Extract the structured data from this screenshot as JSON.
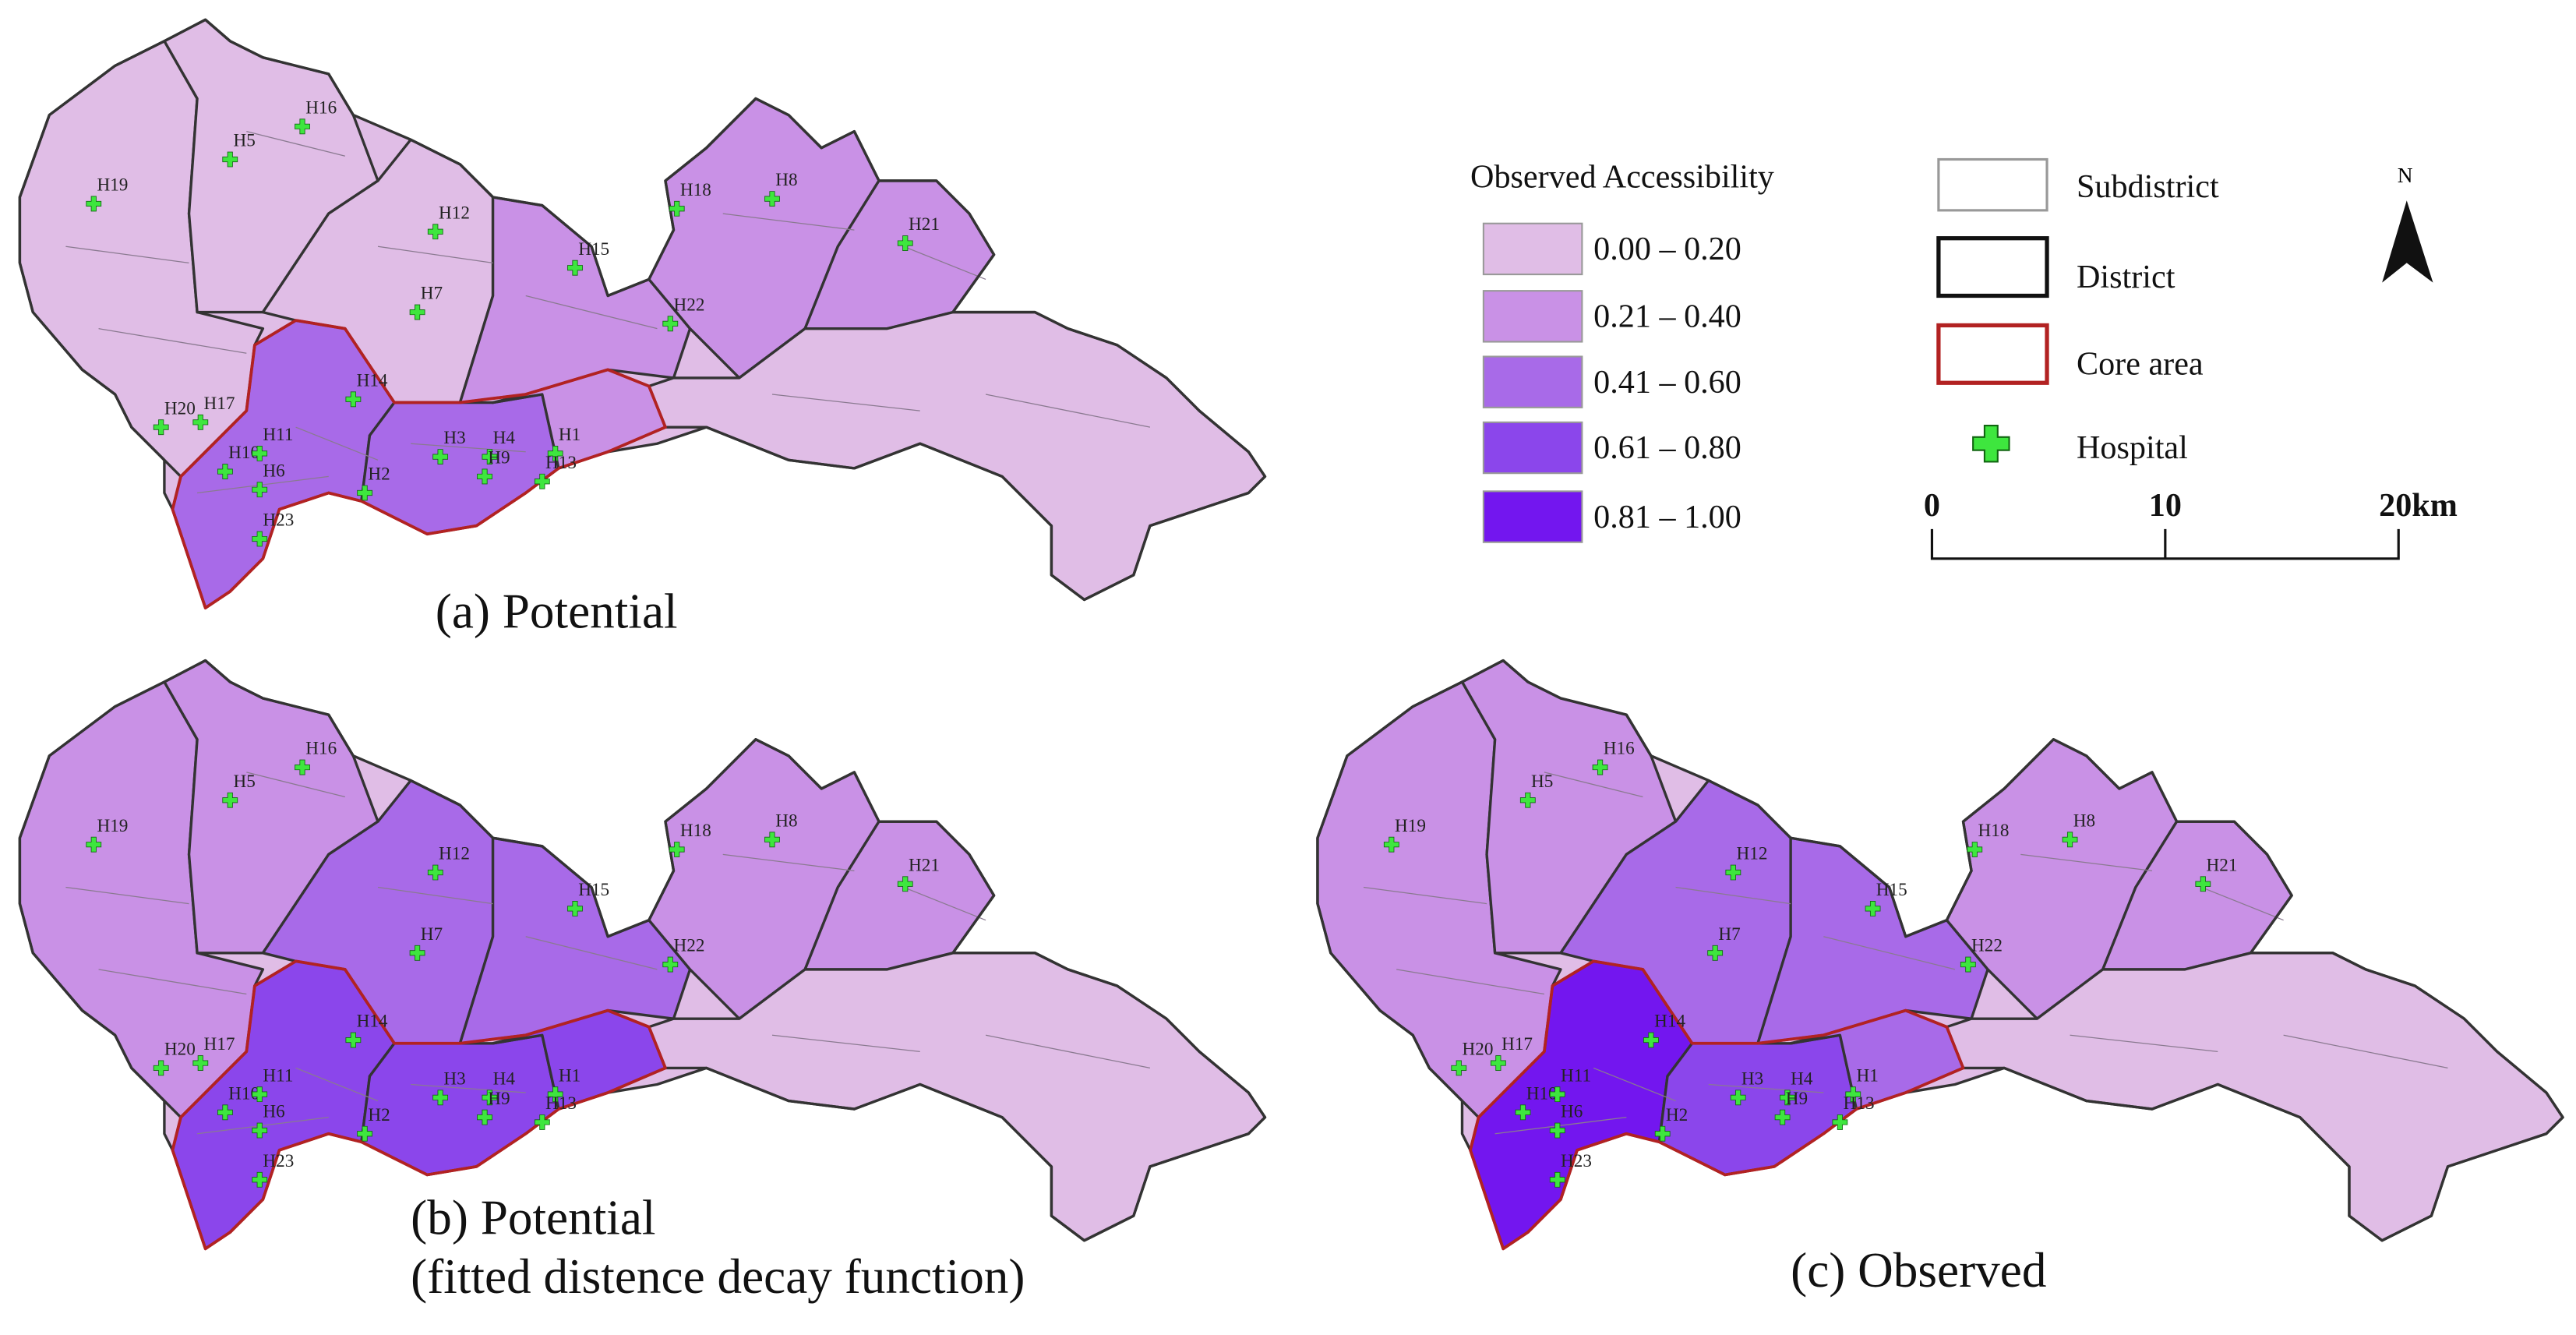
{
  "maps": [
    {
      "caption": [
        "(a) Potential"
      ]
    },
    {
      "caption": [
        "(b) Potential",
        "(fitted distence decay function)"
      ]
    },
    {
      "caption": [
        "(c) Observed"
      ]
    }
  ],
  "hospitals": [
    "H1",
    "H2",
    "H3",
    "H4",
    "H5",
    "H6",
    "H7",
    "H8",
    "H9",
    "H10",
    "H11",
    "H12",
    "H13",
    "H14",
    "H15",
    "H16",
    "H17",
    "H18",
    "H19",
    "H20",
    "H21",
    "H22",
    "H23"
  ],
  "legend": {
    "title": "Observed Accessibility",
    "classes": [
      {
        "label": "0.00 – 0.20",
        "color": "#e0bde6"
      },
      {
        "label": "0.21 – 0.40",
        "color": "#c991e6"
      },
      {
        "label": "0.41 – 0.60",
        "color": "#a86ae8"
      },
      {
        "label": "0.61 – 0.80",
        "color": "#8b46eb"
      },
      {
        "label": "0.81 – 1.00",
        "color": "#7316ef"
      }
    ]
  },
  "layers": [
    "Subdistrict",
    "District",
    "Core area",
    "Hospital"
  ],
  "scale_bar": [
    "0",
    "10",
    "20km"
  ],
  "north": "N"
}
